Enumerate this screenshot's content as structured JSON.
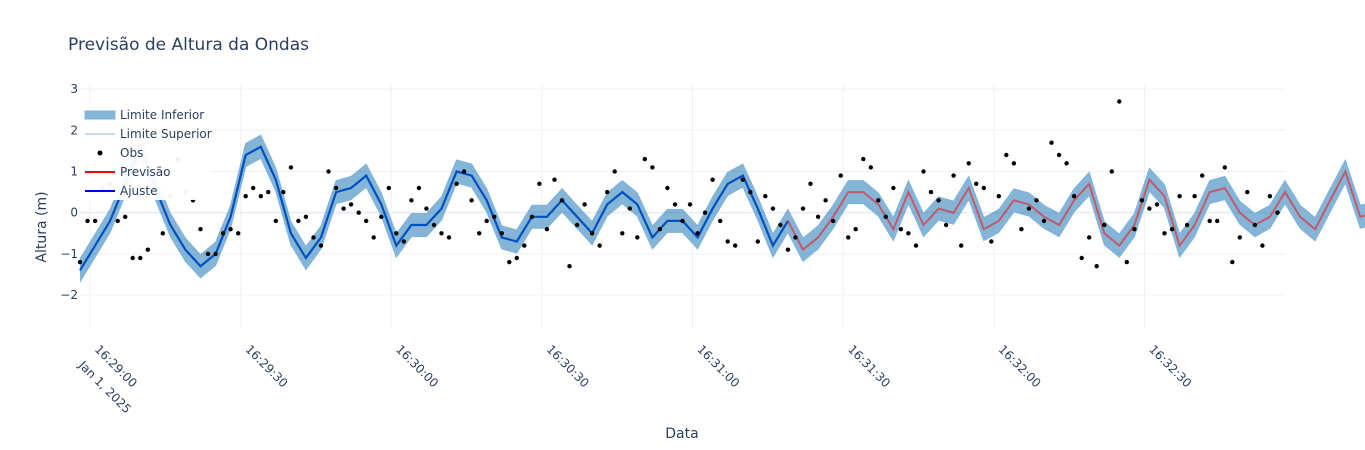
{
  "chart_data": {
    "type": "line",
    "title": "Previsão de Altura da Ondas",
    "xlabel": "Data",
    "ylabel": "Altura (m)",
    "x_start": "2025-01-01T16:28:58",
    "x_step_seconds": 3,
    "xlim": [
      "2025-01-01T16:28:58",
      "2025-01-01T16:32:58"
    ],
    "ylim": [
      -2.8,
      3.1
    ],
    "y_ticks": [
      "−2",
      "−1",
      "0",
      "1",
      "2",
      "3"
    ],
    "y_tick_values": [
      -2,
      -1,
      0,
      1,
      2,
      3
    ],
    "x_ticks": [
      {
        "value": "2025-01-01T16:29:00",
        "label": "16:29:00",
        "sublabel": "Jan 1, 2025"
      },
      {
        "value": "2025-01-01T16:29:30",
        "label": "16:29:30",
        "sublabel": ""
      },
      {
        "value": "2025-01-01T16:30:00",
        "label": "16:30:00",
        "sublabel": ""
      },
      {
        "value": "2025-01-01T16:30:30",
        "label": "16:30:30",
        "sublabel": ""
      },
      {
        "value": "2025-01-01T16:31:00",
        "label": "16:31:00",
        "sublabel": ""
      },
      {
        "value": "2025-01-01T16:31:30",
        "label": "16:31:30",
        "sublabel": ""
      },
      {
        "value": "2025-01-01T16:32:00",
        "label": "16:32:00",
        "sublabel": ""
      },
      {
        "value": "2025-01-01T16:32:30",
        "label": "16:32:30",
        "sublabel": ""
      }
    ],
    "grid": true,
    "legend_position": "top-left",
    "colors": {
      "band_fill": "#1f77b4",
      "band_edge": "#7fb3dc",
      "upper_line": "#c6dbef",
      "obs": "#000000",
      "forecast": "#ff0000",
      "fit": "#0000ff",
      "fit_drawn": "#0050c0"
    },
    "legend": [
      {
        "key": "lower",
        "label": "Limite Inferior"
      },
      {
        "key": "upper",
        "label": "Limite Superior"
      },
      {
        "key": "obs",
        "label": "Obs"
      },
      {
        "key": "forecast",
        "label": "Previsão"
      },
      {
        "key": "fit",
        "label": "Ajuste"
      }
    ],
    "band_halfwidth": 0.28,
    "fit_values": [
      -1.4,
      -0.8,
      -0.2,
      0.7,
      1.6,
      0.6,
      -0.3,
      -0.9,
      -1.3,
      -1.0,
      -0.1,
      1.4,
      1.6,
      0.8,
      -0.5,
      -1.1,
      -0.6,
      0.5,
      0.6,
      0.9,
      0.2,
      -0.8,
      -0.3,
      -0.3,
      0.1,
      1.0,
      0.9,
      0.3,
      -0.6,
      -0.7,
      -0.1,
      -0.1,
      0.3,
      -0.1,
      -0.5,
      0.2,
      0.5,
      0.2,
      -0.6,
      -0.2,
      -0.2,
      -0.6,
      0.1,
      0.7,
      0.9,
      0.1,
      -0.8,
      -0.2
    ],
    "forecast_values": [
      -0.2,
      -0.9,
      -0.6,
      -0.1,
      0.5,
      0.5,
      0.2,
      -0.4,
      0.5,
      -0.3,
      0.1,
      0.0,
      0.6,
      -0.4,
      -0.2,
      0.3,
      0.2,
      -0.1,
      -0.3,
      0.3,
      0.7,
      -0.5,
      -0.8,
      -0.3,
      0.8,
      0.4,
      -0.8,
      -0.3,
      0.5,
      0.6,
      0.0,
      -0.3,
      -0.1,
      0.5,
      -0.1,
      -0.4,
      0.3,
      1.0,
      -0.1,
      0.0,
      -0.7,
      0.5,
      1.2,
      -0.3,
      -0.5,
      -0.3,
      0.3,
      0.4,
      -0.7,
      -0.2,
      0.6,
      0.5,
      -0.5,
      -0.2,
      0.7,
      0.6,
      -0.3,
      0.4,
      0.1,
      -0.3,
      -0.9,
      -0.1,
      1.2,
      0.7,
      -0.8,
      -0.2,
      0.9,
      0.6,
      0.9,
      -0.2,
      -0.4,
      0.3,
      0.6,
      -0.3,
      -0.5,
      -0.1,
      0.6,
      -1.1,
      -1.1,
      -0.1,
      0.6,
      0.9,
      -0.4,
      -0.5,
      0.3,
      -0.3,
      -0.6,
      0.3,
      0.1,
      -0.2,
      0.5,
      -0.5,
      -0.6,
      0.3,
      0.3,
      -0.2,
      -0.4,
      0.3,
      0.5,
      0.4,
      0.5,
      -0.2,
      -1.0,
      -1.3,
      0.4,
      0.4,
      0.0,
      -0.3,
      0.5,
      0.5,
      -0.3,
      0.8,
      0.7
    ],
    "obs_x": [
      0.0,
      0.5,
      1.0,
      1.5,
      2.0,
      2.5,
      3.0,
      3.5,
      4.0,
      4.5,
      5.0,
      5.5,
      6.0,
      6.5,
      7.0,
      7.5,
      8.0,
      8.5,
      9.0,
      9.5,
      10.0,
      10.5,
      11.0,
      11.5,
      12.0,
      12.5,
      13.0,
      13.5,
      14.0,
      14.5,
      15.0,
      15.5,
      16.0,
      16.5,
      17.0,
      17.5,
      18.0,
      18.5,
      19.0,
      19.5,
      20.0,
      20.5,
      21.0,
      21.5,
      22.0,
      22.5,
      23.0,
      23.5,
      24.0,
      24.5,
      25.0,
      25.5,
      26.0,
      26.5,
      27.0,
      27.5,
      28.0,
      28.5,
      29.0,
      29.5,
      30.0,
      30.5,
      31.0,
      31.5,
      32.0,
      32.5,
      33.0,
      33.5,
      34.0,
      34.5,
      35.0,
      35.5,
      36.0,
      36.5,
      37.0,
      37.5,
      38.0,
      38.5,
      39.0,
      39.5,
      40.0,
      40.5,
      41.0,
      41.5,
      42.0,
      42.5,
      43.0,
      43.5,
      44.0,
      44.5,
      45.0,
      45.5,
      46.0,
      46.5,
      47.0,
      47.5,
      48.0,
      48.5,
      49.0,
      49.5,
      50.0,
      50.5,
      51.0,
      51.5,
      52.0,
      52.5,
      53.0,
      53.5,
      54.0,
      54.5,
      55.0,
      55.5,
      56.0,
      56.5,
      57.0,
      57.5,
      58.0,
      58.5,
      59.0,
      59.5,
      60.0,
      60.5,
      61.0,
      61.5,
      62.0,
      62.5,
      63.0,
      63.5,
      64.0,
      64.5,
      65.0,
      65.5,
      66.0,
      66.5,
      67.0,
      67.5,
      68.0,
      68.5,
      69.0,
      69.5,
      70.0,
      70.5,
      71.0,
      71.5,
      72.0,
      72.5,
      73.0,
      73.5,
      74.0,
      74.5,
      75.0,
      75.5,
      76.0,
      76.5,
      77.0,
      77.5,
      78.0,
      78.5,
      79.0,
      79.5
    ],
    "obs_y": [
      -1.2,
      -0.2,
      -0.2,
      0.6,
      0.7,
      -0.2,
      -0.1,
      -1.1,
      -1.1,
      -0.9,
      0.5,
      -0.5,
      0.4,
      1.3,
      0.5,
      0.3,
      -0.4,
      -1.0,
      -1.0,
      -0.5,
      -0.4,
      -0.5,
      0.4,
      0.6,
      0.4,
      0.5,
      -0.2,
      0.5,
      1.1,
      -0.2,
      -0.1,
      -0.6,
      -0.8,
      1.0,
      0.6,
      0.1,
      0.2,
      0.0,
      -0.2,
      -0.6,
      -0.1,
      0.6,
      -0.5,
      -0.7,
      0.3,
      0.6,
      0.1,
      -0.3,
      -0.5,
      -0.6,
      0.7,
      1.0,
      0.3,
      -0.5,
      -0.2,
      -0.1,
      -0.5,
      -1.2,
      -1.1,
      -0.8,
      -0.1,
      0.7,
      -0.4,
      0.8,
      0.3,
      -1.3,
      -0.3,
      0.2,
      -0.5,
      -0.8,
      0.5,
      1.0,
      -0.5,
      0.1,
      -0.6,
      1.3,
      1.1,
      -0.4,
      0.6,
      0.2,
      -0.2,
      0.2,
      -0.5,
      0.0,
      0.8,
      -0.2,
      -0.7,
      -0.8,
      0.8,
      0.5,
      -0.7,
      0.4,
      0.1,
      -0.3,
      -0.9,
      -0.6,
      0.1,
      0.7,
      -0.1,
      0.3,
      -0.2,
      0.9,
      -0.6,
      -0.4,
      1.3,
      1.1,
      0.3,
      -0.1,
      0.6,
      -0.4,
      -0.5,
      -0.8,
      1.0,
      0.5,
      0.3,
      -0.3,
      0.9,
      -0.8,
      1.2,
      0.7,
      0.6,
      -0.7,
      0.4,
      1.4,
      1.2,
      -0.4,
      0.1,
      0.3,
      -0.2,
      1.7,
      1.4,
      1.2,
      0.4,
      -1.1,
      -0.6,
      -1.3,
      -0.3,
      1.0,
      2.7,
      -1.2,
      -0.4,
      0.3,
      0.1,
      0.2,
      -0.5,
      -0.4,
      0.4,
      -0.3,
      0.4,
      0.9,
      -0.2,
      -0.2,
      1.1,
      -1.2,
      -0.6,
      0.5,
      -0.3,
      -0.8,
      0.4,
      0.0,
      -0.3,
      0.6,
      0.2,
      -0.4
    ]
  }
}
